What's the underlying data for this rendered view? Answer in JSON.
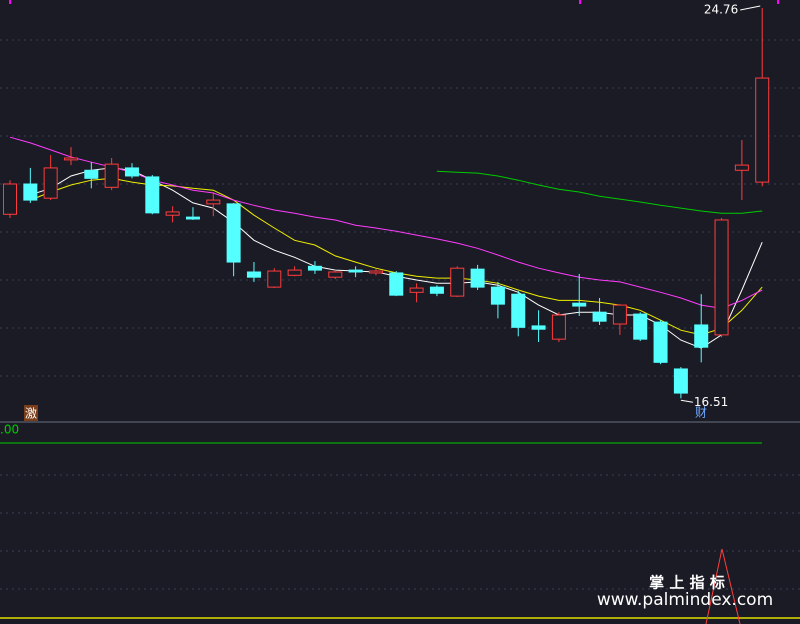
{
  "chart_data": {
    "type": "candlestick",
    "ylim": [
      16.22,
      24.93
    ],
    "up_color": "#ff3c3c",
    "down_color": "#54ffff",
    "open": [
      20.4,
      21.04,
      20.74,
      21.55,
      21.33,
      20.97,
      21.38,
      21.19,
      20.38,
      20.34,
      20.62,
      20.62,
      19.18,
      18.86,
      19.11,
      19.3,
      19.07,
      19.22,
      19.16,
      19.16,
      18.75,
      18.86,
      18.67,
      19.24,
      18.86,
      18.71,
      18.04,
      17.76,
      18.52,
      18.33,
      18.08,
      18.29,
      18.12,
      17.13,
      18.06,
      17.85,
      21.33,
      21.08
    ],
    "high": [
      21.12,
      21.38,
      21.65,
      21.82,
      21.5,
      21.59,
      21.48,
      21.23,
      20.57,
      20.55,
      20.87,
      20.64,
      19.39,
      19.26,
      19.3,
      19.41,
      19.22,
      19.3,
      19.24,
      19.2,
      18.94,
      18.9,
      19.3,
      19.33,
      18.97,
      18.78,
      18.37,
      18.33,
      19.14,
      18.63,
      18.5,
      18.33,
      18.16,
      17.17,
      18.71,
      20.32,
      21.97,
      24.76
    ],
    "low": [
      20.32,
      20.64,
      20.7,
      21.44,
      20.95,
      20.91,
      21.16,
      20.4,
      20.23,
      20.28,
      20.36,
      19.09,
      18.97,
      18.84,
      19.09,
      19.14,
      19.03,
      19.07,
      19.11,
      18.67,
      18.54,
      18.67,
      18.65,
      18.8,
      18.2,
      17.82,
      17.7,
      17.7,
      18.25,
      18.06,
      17.85,
      17.72,
      17.23,
      16.51,
      17.27,
      17.8,
      20.7,
      20.99
    ],
    "close": [
      21.04,
      20.7,
      21.38,
      21.59,
      21.16,
      21.46,
      21.21,
      20.43,
      20.45,
      20.3,
      20.7,
      19.39,
      19.07,
      19.2,
      19.22,
      19.22,
      19.18,
      19.18,
      19.2,
      18.69,
      18.84,
      18.73,
      19.26,
      18.86,
      18.5,
      18.01,
      17.97,
      18.27,
      18.46,
      18.14,
      18.48,
      17.76,
      17.27,
      16.62,
      17.59,
      20.28,
      21.44,
      23.28
    ],
    "series": [
      {
        "color": "#ffffff",
        "values": [
          null,
          20.81,
          20.95,
          21.21,
          21.33,
          21.38,
          21.33,
          21.12,
          20.91,
          20.64,
          20.53,
          20.23,
          19.85,
          19.64,
          19.49,
          19.3,
          19.22,
          19.2,
          19.18,
          19.09,
          19.01,
          18.94,
          18.94,
          18.97,
          18.9,
          18.75,
          18.48,
          18.27,
          18.33,
          18.33,
          18.27,
          18.27,
          18.06,
          17.74,
          17.57,
          17.85,
          18.8,
          19.81
        ]
      },
      {
        "color": "#f0f000",
        "values": [
          null,
          20.7,
          20.87,
          21.02,
          21.12,
          21.16,
          21.08,
          21.02,
          21.0,
          20.95,
          20.91,
          20.7,
          20.38,
          20.11,
          19.85,
          19.75,
          19.52,
          19.39,
          19.26,
          19.16,
          19.09,
          19.05,
          19.05,
          19.01,
          18.94,
          18.8,
          18.67,
          18.58,
          18.58,
          18.54,
          18.48,
          18.37,
          18.16,
          17.95,
          17.85,
          17.99,
          18.37,
          18.86
        ]
      },
      {
        "color": "#ff3cff",
        "values": [
          22.03,
          21.91,
          21.76,
          21.61,
          21.5,
          21.4,
          21.29,
          21.12,
          21.02,
          20.91,
          20.85,
          20.7,
          20.59,
          20.49,
          20.42,
          20.34,
          20.28,
          20.17,
          20.11,
          20.04,
          19.96,
          19.88,
          19.79,
          19.68,
          19.54,
          19.39,
          19.26,
          19.16,
          19.07,
          19.01,
          18.97,
          18.86,
          18.75,
          18.63,
          18.48,
          18.41,
          18.58,
          18.8
        ]
      },
      {
        "color": "#00cc00",
        "values": [
          null,
          null,
          null,
          null,
          null,
          null,
          null,
          null,
          null,
          null,
          null,
          null,
          null,
          null,
          null,
          null,
          null,
          null,
          null,
          null,
          null,
          21.31,
          21.29,
          21.27,
          21.21,
          21.12,
          21.02,
          20.93,
          20.87,
          20.78,
          20.72,
          20.66,
          20.59,
          20.53,
          20.47,
          20.42,
          20.42,
          20.47
        ]
      }
    ],
    "tag_left": "激",
    "tag_low": "财",
    "indicator_label": ".00",
    "watermark": {
      "title": "掌 上 指 标",
      "url": "www.palmindex.com"
    }
  }
}
